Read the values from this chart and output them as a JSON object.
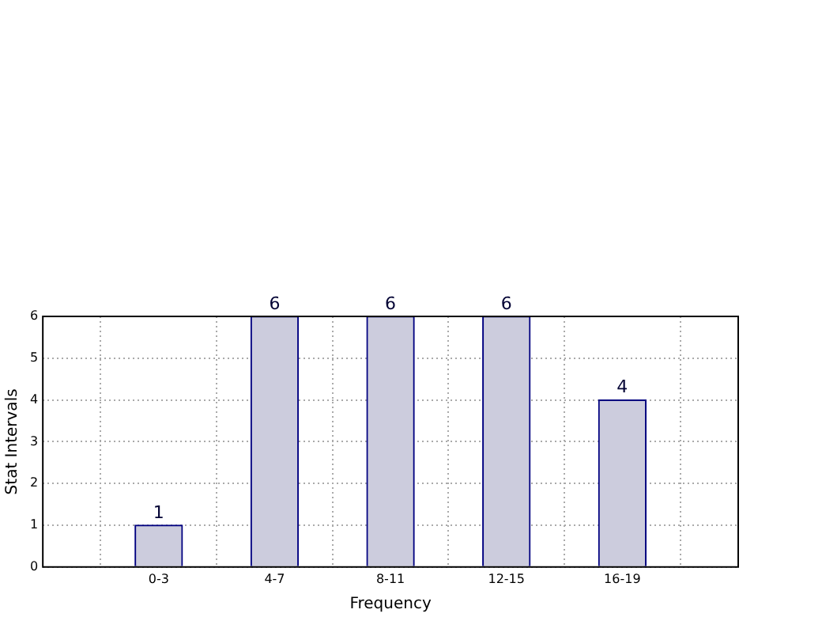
{
  "chart_data": {
    "type": "bar",
    "xlabel": "Frequency",
    "ylabel": "Stat Intervals",
    "categories": [
      "0-3",
      "4-7",
      "8-11",
      "12-15",
      "16-19"
    ],
    "values": [
      1,
      6,
      6,
      6,
      4
    ],
    "color": "#ccccdd",
    "ylim": [
      0,
      6
    ],
    "yticks": [
      0,
      1,
      2,
      3,
      4,
      5,
      6
    ],
    "grid": true,
    "data_labels": true
  }
}
